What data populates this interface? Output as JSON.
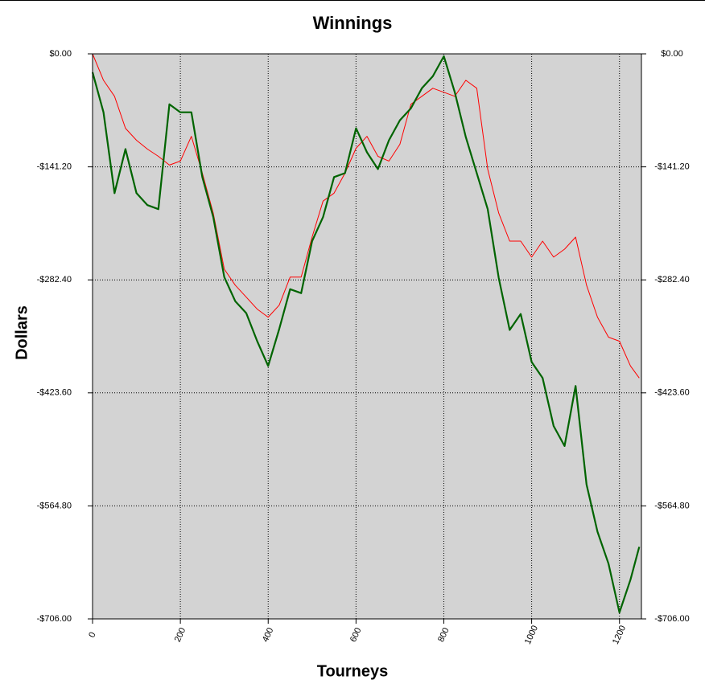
{
  "chart_data": {
    "type": "line",
    "title": "Winnings",
    "x_label": "Tourneys",
    "y_label": "Dollars",
    "x": [
      0,
      25,
      50,
      75,
      100,
      125,
      150,
      175,
      200,
      225,
      250,
      275,
      300,
      325,
      350,
      375,
      400,
      425,
      450,
      475,
      500,
      525,
      550,
      575,
      600,
      625,
      650,
      675,
      700,
      725,
      750,
      775,
      800,
      825,
      850,
      875,
      900,
      925,
      950,
      975,
      1000,
      1025,
      1050,
      1075,
      1100,
      1125,
      1150,
      1175,
      1200,
      1225,
      1245
    ],
    "series": [
      {
        "color": "#ff0000",
        "values": [
          0,
          -33,
          -53,
          -93,
          -108,
          -119,
          -128,
          -139,
          -134,
          -103,
          -149,
          -199,
          -269,
          -289,
          -304,
          -319,
          -329,
          -314,
          -279,
          -279,
          -229,
          -184,
          -174,
          -149,
          -118,
          -103,
          -128,
          -134,
          -113,
          -63,
          -53,
          -43,
          -48,
          -53,
          -33,
          -43,
          -144,
          -199,
          -234,
          -234,
          -254,
          -234,
          -254,
          -244,
          -229,
          -289,
          -329,
          -354,
          -359,
          -390,
          -405
        ]
      },
      {
        "color": "#006400",
        "values": [
          -23,
          -73,
          -174,
          -119,
          -174,
          -189,
          -194,
          -63,
          -73,
          -73,
          -154,
          -204,
          -279,
          -309,
          -324,
          -359,
          -390,
          -344,
          -294,
          -299,
          -234,
          -204,
          -154,
          -149,
          -93,
          -123,
          -144,
          -108,
          -83,
          -68,
          -43,
          -28,
          -3,
          -48,
          -104,
          -149,
          -194,
          -280,
          -345,
          -325,
          -385,
          -405,
          -465,
          -490,
          -415,
          -538,
          -597,
          -637,
          -698,
          -657,
          -616
        ]
      }
    ],
    "xlim": [
      0,
      1250
    ],
    "xticks": [
      0,
      200,
      400,
      600,
      800,
      1000,
      1200
    ],
    "ylim": [
      -706,
      0
    ],
    "yticks": [
      {
        "value": 0,
        "label": "$0.00"
      },
      {
        "value": -141.2,
        "label": "-$141.20"
      },
      {
        "value": -282.4,
        "label": "-$282.40"
      },
      {
        "value": -423.6,
        "label": "-$423.60"
      },
      {
        "value": -564.8,
        "label": "-$564.80"
      },
      {
        "value": -706,
        "label": "-$706.00"
      }
    ],
    "grid": true
  }
}
